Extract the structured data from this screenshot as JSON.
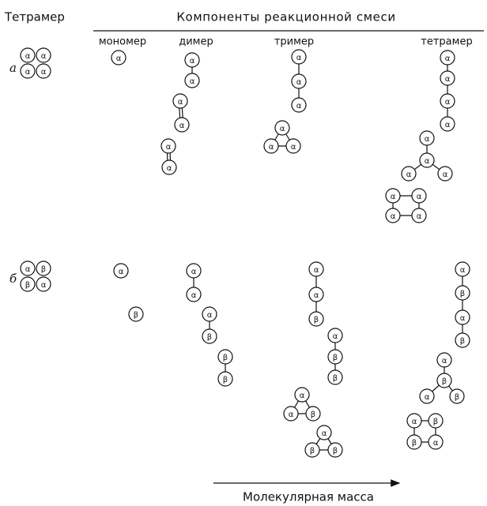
{
  "header": {
    "tetramer": "Тетрамер",
    "components": "Компоненты реакционной смеси",
    "columns": [
      "мономер",
      "димер",
      "тример",
      "тетрамер"
    ]
  },
  "rows": [
    {
      "label": "а",
      "tetramer": [
        "α",
        "α",
        "α",
        "α"
      ],
      "structures": [
        {
          "units": [
            "α"
          ]
        },
        {
          "units": [
            "α",
            "α"
          ]
        },
        {
          "units": [
            "α",
            "α"
          ]
        },
        {
          "units": [
            "α",
            "α"
          ]
        },
        {
          "units": [
            "α",
            "α",
            "α"
          ]
        },
        {
          "units": [
            "α",
            "α",
            "α"
          ]
        },
        {
          "units": [
            "α",
            "α",
            "α",
            "α"
          ]
        },
        {
          "units": [
            "α",
            "α",
            "α",
            "α"
          ]
        },
        {
          "units": [
            "α",
            "α",
            "α",
            "α"
          ]
        }
      ]
    },
    {
      "label": "б",
      "tetramer": [
        "α",
        "β",
        "β",
        "α"
      ],
      "structures": [
        {
          "units": [
            "α"
          ]
        },
        {
          "units": [
            "β"
          ]
        },
        {
          "units": [
            "α",
            "α"
          ]
        },
        {
          "units": [
            "α",
            "β"
          ]
        },
        {
          "units": [
            "β",
            "β"
          ]
        },
        {
          "units": [
            "α",
            "α",
            "β"
          ]
        },
        {
          "units": [
            "α",
            "β",
            "β"
          ]
        },
        {
          "units": [
            "α",
            "α",
            "β"
          ]
        },
        {
          "units": [
            "α",
            "β",
            "β"
          ]
        },
        {
          "units": [
            "α",
            "β",
            "α",
            "β"
          ]
        },
        {
          "units": [
            "β",
            "α",
            "α",
            "β"
          ]
        },
        {
          "units": [
            "α",
            "β",
            "β",
            "α"
          ]
        }
      ]
    }
  ],
  "axis": "Молекулярная масса"
}
